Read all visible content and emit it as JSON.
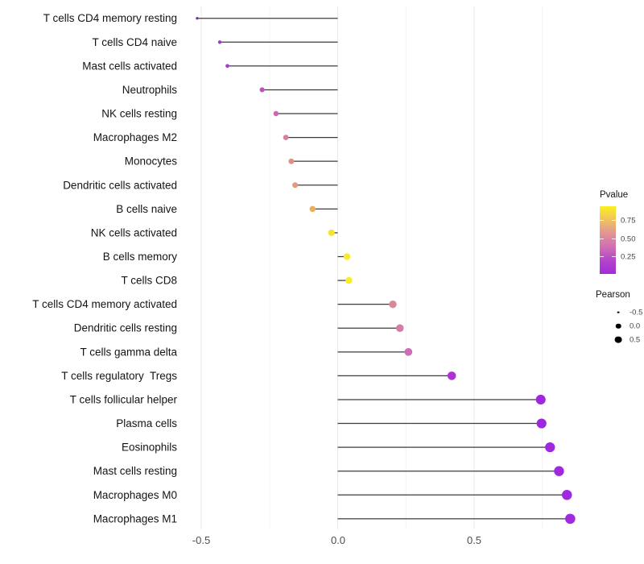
{
  "chart_data": {
    "type": "scatter",
    "variant": "lollipop",
    "title": "",
    "xlabel": "",
    "ylabel": "",
    "xlim": [
      -0.56,
      0.88
    ],
    "grid": "on",
    "legend_position": "right",
    "x_ticks": [
      -0.5,
      0.0,
      0.5
    ],
    "x_tick_labels": [
      "-0.5",
      "0.0",
      "0.5"
    ],
    "gridlines_major": [
      -0.5,
      0.0,
      0.5
    ],
    "gridlines_minor": [
      -0.25,
      0.25,
      0.75
    ],
    "size_encoding": "Pearson",
    "color_encoding": "Pvalue",
    "categories": [
      "T cells CD4 memory resting",
      "T cells CD4 naive",
      "Mast cells activated",
      "Neutrophils",
      "NK cells resting",
      "Macrophages M2",
      "Monocytes",
      "Dendritic cells activated",
      "B cells naive",
      "NK cells activated",
      "B cells memory",
      "T cells CD8",
      "T cells CD4 memory activated",
      "Dendritic cells resting",
      "T cells gamma delta",
      "T cells regulatory  Tregs",
      "T cells follicular helper",
      "Plasma cells",
      "Eosinophils",
      "Mast cells resting",
      "Macrophages M0",
      "Macrophages M1"
    ],
    "series": [
      {
        "name": "Pearson correlation",
        "values": [
          -0.515,
          -0.432,
          -0.404,
          -0.277,
          -0.226,
          -0.19,
          -0.17,
          -0.156,
          -0.092,
          -0.023,
          0.034,
          0.041,
          0.202,
          0.228,
          0.259,
          0.418,
          0.744,
          0.747,
          0.778,
          0.811,
          0.84,
          0.852
        ],
        "point_colors": [
          "#7b22bb",
          "#9c39d2",
          "#a23cd6",
          "#c24fc3",
          "#cc67b0",
          "#d97f9e",
          "#e08f82",
          "#e3997b",
          "#eaaf56",
          "#f5e132",
          "#f8ec28",
          "#f8ee25",
          "#d98897",
          "#d47da6",
          "#cc6db5",
          "#ae33d7",
          "#9d28dd",
          "#9d28dd",
          "#9e29de",
          "#9e29de",
          "#a02ae0",
          "#a02ae0"
        ]
      }
    ]
  },
  "legend": {
    "pvalue": {
      "title": "Pvalue",
      "tick_labels": [
        "0.75",
        "0.50",
        "0.25"
      ],
      "gradient_top_to_bottom": [
        "#f9f01f",
        "#f0c25f",
        "#e29495",
        "#d06fb2",
        "#b544cc",
        "#a32cd8"
      ]
    },
    "pearson": {
      "title": "Pearson",
      "items": [
        {
          "label": "-0.5",
          "value": -0.5
        },
        {
          "label": "0.0",
          "value": 0.0
        },
        {
          "label": "0.5",
          "value": 0.5
        }
      ]
    }
  }
}
